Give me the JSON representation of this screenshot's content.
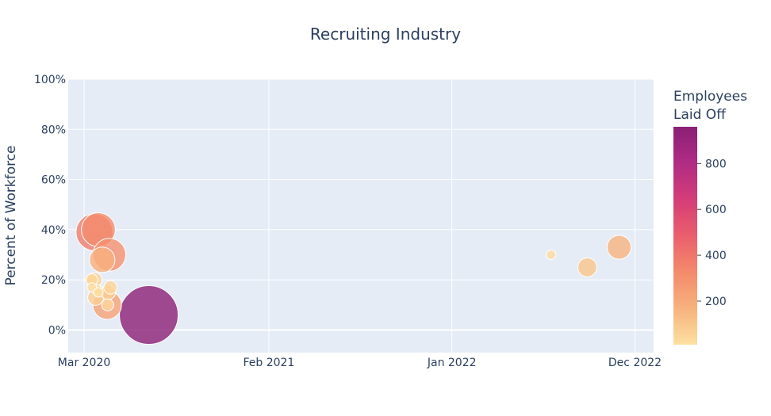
{
  "chart_data": {
    "type": "scatter",
    "title": "Recruiting Industry",
    "xlabel": "",
    "ylabel": "Percent of Workforce",
    "x_ticks": [
      {
        "date": "2020-03-01",
        "label": "Mar 2020"
      },
      {
        "date": "2021-02-01",
        "label": "Feb 2021"
      },
      {
        "date": "2022-01-01",
        "label": "Jan 2022"
      },
      {
        "date": "2022-12-01",
        "label": "Dec 2022"
      }
    ],
    "xlim": [
      "2020-02-01",
      "2023-01-04"
    ],
    "y_ticks": [
      0,
      0.2,
      0.4,
      0.6,
      0.8,
      1.0
    ],
    "y_tick_labels": [
      "0%",
      "20%",
      "40%",
      "60%",
      "80%",
      "100%"
    ],
    "ylim": [
      -0.09,
      1.0
    ],
    "grid": true,
    "colorbar": {
      "title_lines": [
        "Employees",
        "Laid Off"
      ],
      "range": [
        10,
        960
      ],
      "ticks": [
        200,
        400,
        600,
        800
      ],
      "tick_labels": [
        "200",
        "400",
        "600",
        "800"
      ],
      "colorscale": [
        "#fde0a0",
        "#f7b27d",
        "#f48a6c",
        "#ea5f6c",
        "#d43d78",
        "#b02c83",
        "#8b1f76"
      ]
    },
    "points": [
      {
        "date": "2020-03-20",
        "percent": 0.39,
        "laid_off": 380
      },
      {
        "date": "2020-03-27",
        "percent": 0.4,
        "laid_off": 320
      },
      {
        "date": "2020-04-16",
        "percent": 0.3,
        "laid_off": 300
      },
      {
        "date": "2020-04-03",
        "percent": 0.28,
        "laid_off": 180
      },
      {
        "date": "2020-03-20",
        "percent": 0.2,
        "laid_off": 60
      },
      {
        "date": "2020-03-15",
        "percent": 0.2,
        "laid_off": 40
      },
      {
        "date": "2020-03-15",
        "percent": 0.17,
        "laid_off": 25
      },
      {
        "date": "2020-03-25",
        "percent": 0.16,
        "laid_off": 30
      },
      {
        "date": "2020-03-27",
        "percent": 0.15,
        "laid_off": 25
      },
      {
        "date": "2020-04-18",
        "percent": 0.17,
        "laid_off": 50
      },
      {
        "date": "2020-04-14",
        "percent": 0.15,
        "laid_off": 60
      },
      {
        "date": "2020-03-22",
        "percent": 0.13,
        "laid_off": 70
      },
      {
        "date": "2020-04-12",
        "percent": 0.1,
        "laid_off": 230
      },
      {
        "date": "2020-04-13",
        "percent": 0.1,
        "laid_off": 40
      },
      {
        "date": "2020-06-27",
        "percent": 0.06,
        "laid_off": 960
      },
      {
        "date": "2022-07-01",
        "percent": 0.3,
        "laid_off": 25
      },
      {
        "date": "2022-09-05",
        "percent": 0.25,
        "laid_off": 100
      },
      {
        "date": "2022-11-02",
        "percent": 0.33,
        "laid_off": 160
      }
    ]
  }
}
